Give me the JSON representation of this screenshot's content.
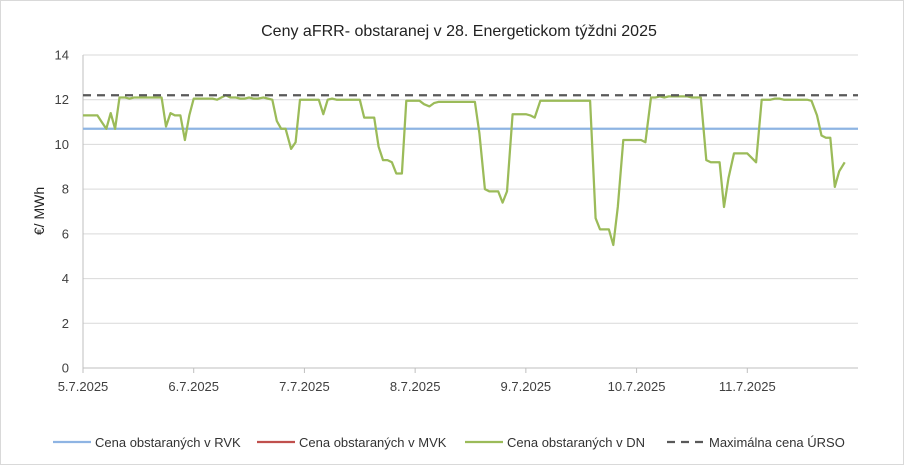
{
  "chart_data": {
    "type": "line",
    "title": "Ceny aFRR- obstaranej v 28. Energetickom týždni 2025",
    "ylabel": "€/ MWh",
    "xlabel": "",
    "ylim": [
      0,
      14
    ],
    "yticks": [
      0,
      2,
      4,
      6,
      8,
      10,
      12,
      14
    ],
    "xlim": [
      0,
      7
    ],
    "x_tick_labels": [
      "5.7.2025",
      "6.7.2025",
      "7.7.2025",
      "8.7.2025",
      "9.7.2025",
      "10.7.2025",
      "11.7.2025"
    ],
    "grid": true,
    "legend_position": "bottom",
    "series": [
      {
        "name": "Cena obstaraných v RVK",
        "color": "#8eb4e3",
        "style": "solid",
        "points": [
          [
            0,
            10.7
          ],
          [
            7,
            10.7
          ]
        ]
      },
      {
        "name": "Cena obstaraných v MVK",
        "color": "#c0504d",
        "style": "solid",
        "points": []
      },
      {
        "name": "Cena obstaraných v DN",
        "color": "#9bbb59",
        "style": "solid",
        "points": [
          [
            0.0,
            11.3
          ],
          [
            0.04,
            11.3
          ],
          [
            0.08,
            11.3
          ],
          [
            0.13,
            11.3
          ],
          [
            0.17,
            11.0
          ],
          [
            0.21,
            10.7
          ],
          [
            0.25,
            11.4
          ],
          [
            0.29,
            10.7
          ],
          [
            0.33,
            12.1
          ],
          [
            0.38,
            12.1
          ],
          [
            0.42,
            12.05
          ],
          [
            0.46,
            12.1
          ],
          [
            0.5,
            12.1
          ],
          [
            0.54,
            12.1
          ],
          [
            0.58,
            12.1
          ],
          [
            0.63,
            12.1
          ],
          [
            0.67,
            12.1
          ],
          [
            0.71,
            12.1
          ],
          [
            0.75,
            10.8
          ],
          [
            0.79,
            11.4
          ],
          [
            0.83,
            11.3
          ],
          [
            0.88,
            11.3
          ],
          [
            0.92,
            10.2
          ],
          [
            0.96,
            11.3
          ],
          [
            1.0,
            12.05
          ],
          [
            1.04,
            12.05
          ],
          [
            1.08,
            12.05
          ],
          [
            1.13,
            12.05
          ],
          [
            1.17,
            12.05
          ],
          [
            1.21,
            12.0
          ],
          [
            1.25,
            12.1
          ],
          [
            1.29,
            12.2
          ],
          [
            1.33,
            12.1
          ],
          [
            1.38,
            12.1
          ],
          [
            1.42,
            12.05
          ],
          [
            1.46,
            12.05
          ],
          [
            1.5,
            12.1
          ],
          [
            1.54,
            12.05
          ],
          [
            1.58,
            12.05
          ],
          [
            1.63,
            12.1
          ],
          [
            1.67,
            12.05
          ],
          [
            1.71,
            12.0
          ],
          [
            1.75,
            11.05
          ],
          [
            1.79,
            10.7
          ],
          [
            1.83,
            10.7
          ],
          [
            1.88,
            9.8
          ],
          [
            1.92,
            10.1
          ],
          [
            1.96,
            12.0
          ],
          [
            2.0,
            12.0
          ],
          [
            2.04,
            12.0
          ],
          [
            2.08,
            12.0
          ],
          [
            2.13,
            12.0
          ],
          [
            2.17,
            11.35
          ],
          [
            2.21,
            12.0
          ],
          [
            2.25,
            12.05
          ],
          [
            2.29,
            12.0
          ],
          [
            2.33,
            12.0
          ],
          [
            2.38,
            12.0
          ],
          [
            2.42,
            12.0
          ],
          [
            2.46,
            12.0
          ],
          [
            2.5,
            12.0
          ],
          [
            2.54,
            11.2
          ],
          [
            2.58,
            11.2
          ],
          [
            2.63,
            11.2
          ],
          [
            2.67,
            9.9
          ],
          [
            2.71,
            9.3
          ],
          [
            2.75,
            9.3
          ],
          [
            2.79,
            9.2
          ],
          [
            2.83,
            8.7
          ],
          [
            2.88,
            8.7
          ],
          [
            2.92,
            11.95
          ],
          [
            2.96,
            11.95
          ],
          [
            3.0,
            11.95
          ],
          [
            3.04,
            11.95
          ],
          [
            3.08,
            11.8
          ],
          [
            3.13,
            11.7
          ],
          [
            3.17,
            11.85
          ],
          [
            3.21,
            11.9
          ],
          [
            3.25,
            11.9
          ],
          [
            3.29,
            11.9
          ],
          [
            3.33,
            11.9
          ],
          [
            3.38,
            11.9
          ],
          [
            3.42,
            11.9
          ],
          [
            3.46,
            11.9
          ],
          [
            3.5,
            11.9
          ],
          [
            3.54,
            11.9
          ],
          [
            3.58,
            10.5
          ],
          [
            3.63,
            8.0
          ],
          [
            3.67,
            7.9
          ],
          [
            3.71,
            7.9
          ],
          [
            3.75,
            7.9
          ],
          [
            3.79,
            7.4
          ],
          [
            3.83,
            7.9
          ],
          [
            3.88,
            11.35
          ],
          [
            3.92,
            11.35
          ],
          [
            3.96,
            11.35
          ],
          [
            4.0,
            11.35
          ],
          [
            4.04,
            11.3
          ],
          [
            4.08,
            11.2
          ],
          [
            4.13,
            11.95
          ],
          [
            4.17,
            11.95
          ],
          [
            4.21,
            11.95
          ],
          [
            4.25,
            11.95
          ],
          [
            4.29,
            11.95
          ],
          [
            4.33,
            11.95
          ],
          [
            4.38,
            11.95
          ],
          [
            4.42,
            11.95
          ],
          [
            4.46,
            11.95
          ],
          [
            4.5,
            11.95
          ],
          [
            4.54,
            11.95
          ],
          [
            4.58,
            11.95
          ],
          [
            4.63,
            6.7
          ],
          [
            4.67,
            6.2
          ],
          [
            4.71,
            6.2
          ],
          [
            4.75,
            6.2
          ],
          [
            4.79,
            5.5
          ],
          [
            4.83,
            7.2
          ],
          [
            4.88,
            10.2
          ],
          [
            4.92,
            10.2
          ],
          [
            4.96,
            10.2
          ],
          [
            5.0,
            10.2
          ],
          [
            5.04,
            10.2
          ],
          [
            5.08,
            10.1
          ],
          [
            5.13,
            12.1
          ],
          [
            5.17,
            12.1
          ],
          [
            5.21,
            12.15
          ],
          [
            5.25,
            12.1
          ],
          [
            5.29,
            12.15
          ],
          [
            5.33,
            12.15
          ],
          [
            5.38,
            12.15
          ],
          [
            5.42,
            12.15
          ],
          [
            5.46,
            12.15
          ],
          [
            5.5,
            12.1
          ],
          [
            5.54,
            12.1
          ],
          [
            5.58,
            12.1
          ],
          [
            5.63,
            9.3
          ],
          [
            5.67,
            9.2
          ],
          [
            5.71,
            9.2
          ],
          [
            5.75,
            9.2
          ],
          [
            5.79,
            7.2
          ],
          [
            5.83,
            8.5
          ],
          [
            5.88,
            9.6
          ],
          [
            5.92,
            9.6
          ],
          [
            5.96,
            9.6
          ],
          [
            6.0,
            9.6
          ],
          [
            6.04,
            9.4
          ],
          [
            6.08,
            9.2
          ],
          [
            6.13,
            12.0
          ],
          [
            6.17,
            12.0
          ],
          [
            6.21,
            12.0
          ],
          [
            6.25,
            12.05
          ],
          [
            6.29,
            12.05
          ],
          [
            6.33,
            12.0
          ],
          [
            6.38,
            12.0
          ],
          [
            6.42,
            12.0
          ],
          [
            6.46,
            12.0
          ],
          [
            6.5,
            12.0
          ],
          [
            6.54,
            12.0
          ],
          [
            6.58,
            11.95
          ],
          [
            6.63,
            11.3
          ],
          [
            6.67,
            10.4
          ],
          [
            6.71,
            10.3
          ],
          [
            6.75,
            10.3
          ],
          [
            6.79,
            8.1
          ],
          [
            6.83,
            8.8
          ],
          [
            6.88,
            9.2
          ]
        ]
      },
      {
        "name": "Maximálna cena ÚRSO",
        "color": "#595959",
        "style": "dashed",
        "points": [
          [
            0,
            12.2
          ],
          [
            7,
            12.2
          ]
        ]
      }
    ]
  }
}
